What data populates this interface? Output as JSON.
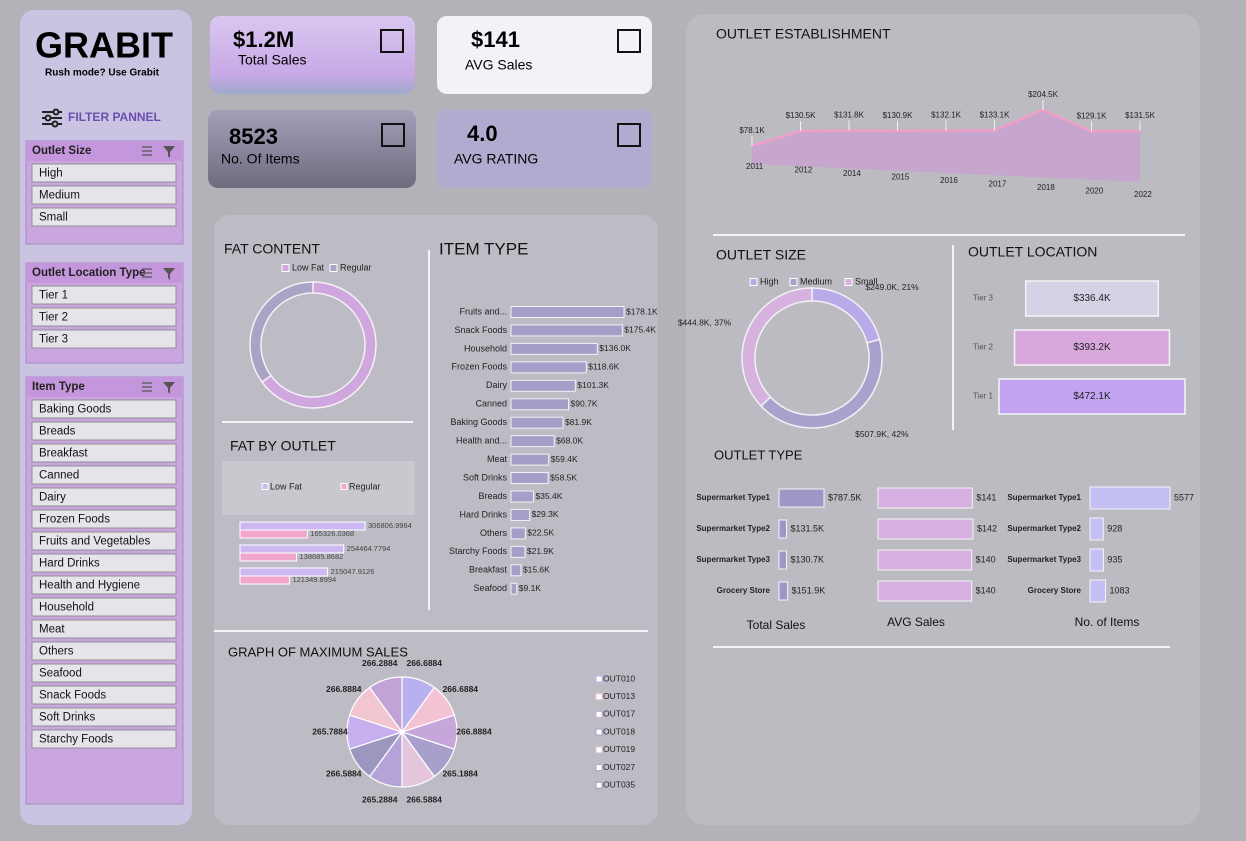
{
  "header": {
    "title": "GRABIT",
    "subtitle": "Rush mode? Use Grabit",
    "filter_title": "FILTER PANNEL"
  },
  "filters": [
    {
      "title": "Outlet Size",
      "options": [
        "High",
        "Medium",
        "Small"
      ]
    },
    {
      "title": "Outlet Location Type",
      "options": [
        "Tier 1",
        "Tier 2",
        "Tier 3"
      ]
    },
    {
      "title": "Item Type",
      "options": [
        "Baking Goods",
        "Breads",
        "Breakfast",
        "Canned",
        "Dairy",
        "Frozen Foods",
        "Fruits and Vegetables",
        "Hard Drinks",
        "Health and Hygiene",
        "Household",
        "Meat",
        "Others",
        "Seafood",
        "Snack Foods",
        "Soft Drinks",
        "Starchy Foods"
      ]
    }
  ],
  "kpis": [
    {
      "value": "$1.2M",
      "label": "Total Sales"
    },
    {
      "value": "$141",
      "label": "AVG Sales"
    },
    {
      "value": "8523",
      "label": "No. Of Items"
    },
    {
      "value": "4.0",
      "label": "AVG RATING"
    }
  ],
  "chart_data": [
    {
      "type": "area",
      "title": "OUTLET ESTABLISHMENT",
      "categories": [
        "2011",
        "2012",
        "2014",
        "2015",
        "2016",
        "2017",
        "2018",
        "2020",
        "2022"
      ],
      "values": [
        78100,
        130500,
        131800,
        130900,
        132100,
        133100,
        204500,
        129100,
        131500
      ],
      "value_labels": [
        "$78.1K",
        "$130.5K",
        "$131.8K",
        "$130.9K",
        "$132.1K",
        "$133.1K",
        "$204.5K",
        "$129.1K",
        "$131.5K"
      ],
      "color": "#c6a4cd",
      "line_color": "#f09ec8"
    },
    {
      "type": "donut",
      "title": "FAT CONTENT",
      "categories": [
        "Low Fat",
        "Regular"
      ],
      "values": [
        65,
        35
      ],
      "colors": [
        "#cfa6dd",
        "#aaa3c6"
      ],
      "legend": "top"
    },
    {
      "type": "hbar",
      "title": "ITEM TYPE",
      "categories": [
        "Fruits and...",
        "Snack Foods",
        "Household",
        "Frozen Foods",
        "Dairy",
        "Canned",
        "Baking Goods",
        "Health and...",
        "Meat",
        "Soft Drinks",
        "Breads",
        "Hard Drinks",
        "Others",
        "Starchy Foods",
        "Breakfast",
        "Seafood"
      ],
      "values": [
        178100,
        175400,
        136000,
        118600,
        101300,
        90700,
        81900,
        68000,
        59400,
        58500,
        35400,
        29300,
        22500,
        21900,
        15600,
        9100
      ],
      "value_labels": [
        "$178.1K",
        "$175.4K",
        "$136.0K",
        "$118.6K",
        "$101.3K",
        "$90.7K",
        "$81.9K",
        "$68.0K",
        "$59.4K",
        "$58.5K",
        "$35.4K",
        "$29.3K",
        "$22.5K",
        "$21.9K",
        "$15.6K",
        "$9.1K"
      ],
      "color": "#a69ec8"
    },
    {
      "type": "grouped-hbar",
      "title": "FAT BY OUTLET",
      "categories": [
        null,
        null,
        null
      ],
      "series": [
        {
          "name": "Low Fat",
          "color": "#cdb8f2",
          "values": [
            306806.9964,
            254464.7794,
            215047.9126
          ]
        },
        {
          "name": "Regular",
          "color": "#f2a6cc",
          "values": [
            165326.0368,
            138685.8682,
            121349.8994
          ]
        }
      ],
      "legend": "top"
    },
    {
      "type": "pie",
      "title": "GRAPH OF MAXIMUM SALES",
      "categories": [
        "OUT010",
        "OUT013",
        "OUT017",
        "OUT018",
        "OUT019",
        "OUT027",
        "OUT035",
        null,
        null,
        null
      ],
      "values": [
        266.6884,
        266.6884,
        266.8884,
        265.1884,
        266.5884,
        265.2884,
        266.5884,
        265.7884,
        266.8884,
        266.2884
      ],
      "colors": [
        "#b9b0f0",
        "#f3c3d3",
        "#c7a6dc",
        "#a99fcc",
        "#e5c5dc",
        "#b3a3d6",
        "#9d97c0",
        "#c8b0ee",
        "#f1c6d0",
        "#c3a3d6"
      ],
      "legend": "right"
    },
    {
      "type": "donut",
      "title": "OUTLET SIZE",
      "categories": [
        "High",
        "Medium",
        "Small"
      ],
      "values": [
        249000,
        507900,
        444800
      ],
      "value_labels": [
        "$249.0K, 21%",
        "$507.9K, 42%",
        "$444.8K, 37%"
      ],
      "colors": [
        "#b9aaea",
        "#a9a2cc",
        "#d6b2de"
      ],
      "legend": "top"
    },
    {
      "type": "hbar-centered",
      "title": "OUTLET LOCATION",
      "categories": [
        "Tier 3",
        "Tier 2",
        "Tier 1"
      ],
      "values": [
        336400,
        393200,
        472100
      ],
      "value_labels": [
        "$336.4K",
        "$393.2K",
        "$472.1K"
      ],
      "colors": [
        "#d6d2e6",
        "#d8a8dc",
        "#c2a4f2"
      ]
    },
    {
      "type": "panels",
      "title": "OUTLET TYPE",
      "categories": [
        "Supermarket Type1",
        "Supermarket Type2",
        "Supermarket Type3",
        "Grocery Store"
      ],
      "series": [
        {
          "name": "Total Sales",
          "color": "#9d97c8",
          "values": [
            787500,
            131500,
            130700,
            151900
          ],
          "value_labels": [
            "$787.5K",
            "$131.5K",
            "$130.7K",
            "$151.9K"
          ]
        },
        {
          "name": "AVG Sales",
          "color": "#d6b0e0",
          "values": [
            141,
            142,
            140,
            140
          ],
          "value_labels": [
            "$141",
            "$142",
            "$140",
            "$140"
          ]
        },
        {
          "name": "No. of Items",
          "color": "#c4c0f4",
          "values": [
            5577,
            928,
            935,
            1083
          ]
        }
      ]
    }
  ]
}
